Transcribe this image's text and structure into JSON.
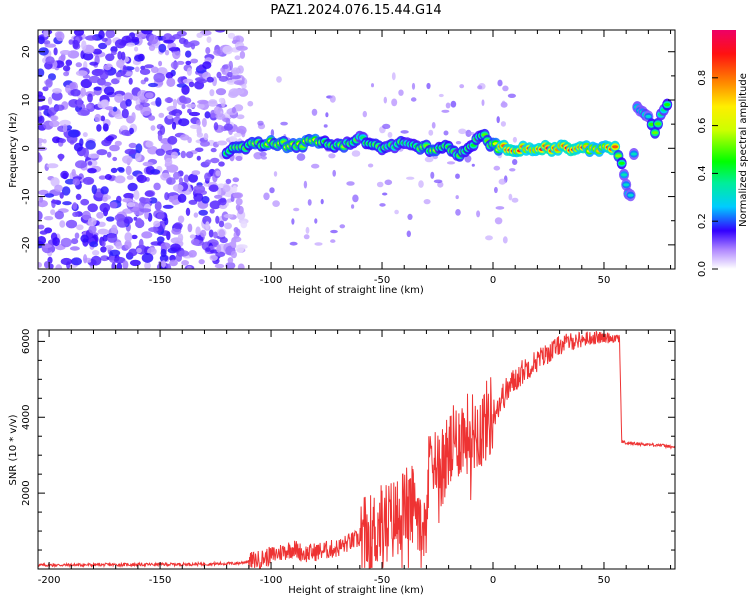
{
  "title": "PAZ1.2024.076.15.44.G14",
  "chart_data": [
    {
      "type": "heatmap",
      "xlabel": "Height of straight line (km)",
      "ylabel": "Frequency (Hz)",
      "xlim": [
        -205,
        82
      ],
      "ylim": [
        -25,
        24.5
      ],
      "xticks": [
        -200,
        -150,
        -100,
        -50,
        0,
        50
      ],
      "yticks": [
        -20,
        -10,
        0,
        10,
        20
      ],
      "colorbar": {
        "label": "Normalized spectral amplitude",
        "range": [
          0,
          1
        ],
        "ticks": [
          "0.0",
          "0.2",
          "0.4",
          "0.6",
          "0.8"
        ],
        "tick_values": [
          0,
          0.2,
          0.4,
          0.6,
          0.8
        ]
      },
      "ridge": [
        {
          "x": -120,
          "y": -0.5,
          "a": 0.45
        },
        {
          "x": -110,
          "y": 0.5,
          "a": 0.5
        },
        {
          "x": -100,
          "y": 1.5,
          "a": 0.55
        },
        {
          "x": -90,
          "y": 0.5,
          "a": 0.55
        },
        {
          "x": -80,
          "y": 1.5,
          "a": 0.55
        },
        {
          "x": -70,
          "y": 0.5,
          "a": 0.5
        },
        {
          "x": -60,
          "y": 2,
          "a": 0.45
        },
        {
          "x": -50,
          "y": 0,
          "a": 0.45
        },
        {
          "x": -40,
          "y": 1,
          "a": 0.45
        },
        {
          "x": -30,
          "y": 0,
          "a": 0.5
        },
        {
          "x": -20,
          "y": 0,
          "a": 0.5
        },
        {
          "x": -15,
          "y": -1.5,
          "a": 0.45
        },
        {
          "x": -10,
          "y": 0,
          "a": 0.45
        },
        {
          "x": -5,
          "y": 3,
          "a": 0.45
        },
        {
          "x": 0,
          "y": 0.5,
          "a": 0.5
        },
        {
          "x": 5,
          "y": 0,
          "a": 0.8
        },
        {
          "x": 15,
          "y": 0,
          "a": 0.85
        },
        {
          "x": 25,
          "y": 0,
          "a": 0.9
        },
        {
          "x": 35,
          "y": 0,
          "a": 0.85
        },
        {
          "x": 45,
          "y": 0,
          "a": 0.8
        },
        {
          "x": 55,
          "y": 0,
          "a": 0.75
        },
        {
          "x": 58,
          "y": -3,
          "a": 0.4
        },
        {
          "x": 60,
          "y": -8,
          "a": 0.35
        },
        {
          "x": 62,
          "y": -10,
          "a": 0.3
        },
        {
          "x": 65,
          "y": 8,
          "a": 0.35
        },
        {
          "x": 70,
          "y": 6,
          "a": 0.35
        },
        {
          "x": 73,
          "y": 3.5,
          "a": 0.55
        },
        {
          "x": 77,
          "y": 8,
          "a": 0.4
        },
        {
          "x": 80,
          "y": 10,
          "a": 0.4
        }
      ]
    },
    {
      "type": "line",
      "xlabel": "Height of straight line (km)",
      "ylabel": "SNR (10 * v/v)",
      "xlim": [
        -205,
        82
      ],
      "ylim": [
        0,
        6300
      ],
      "xticks": [
        -200,
        -150,
        -100,
        -50,
        0,
        50
      ],
      "yticks": [
        2000,
        4000,
        6000
      ],
      "color": "#ee3333",
      "series": [
        {
          "x": [
            -205,
            -180,
            -150,
            -130,
            -115,
            -105,
            -100,
            -95,
            -90,
            -85,
            -80,
            -75,
            -70,
            -65,
            -60,
            -55,
            -50,
            -45,
            -40,
            -35,
            -30,
            -28,
            -25,
            -20,
            -15,
            -10,
            -5,
            -2,
            0,
            5,
            10,
            15,
            20,
            25,
            30,
            35,
            40,
            45,
            50,
            55,
            57,
            58,
            60,
            65,
            70,
            75,
            82
          ],
          "y": [
            100,
            110,
            120,
            130,
            150,
            250,
            350,
            450,
            550,
            400,
            450,
            500,
            550,
            700,
            800,
            900,
            1200,
            1300,
            1600,
            1700,
            1300,
            3500,
            2600,
            3000,
            3500,
            3600,
            3700,
            4000,
            4100,
            4600,
            5000,
            5300,
            5500,
            5700,
            5900,
            6000,
            6050,
            6100,
            6100,
            6100,
            6100,
            3350,
            3320,
            3300,
            3280,
            3270,
            3200
          ]
        }
      ]
    }
  ]
}
